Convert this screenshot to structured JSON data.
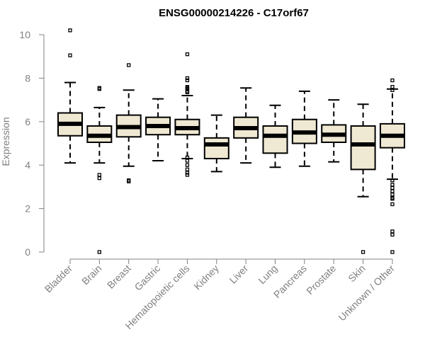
{
  "chart_data": {
    "type": "boxplot",
    "title": "ENSG00000214226 - C17orf67",
    "xlabel": "",
    "ylabel": "Expression",
    "ylim": [
      0,
      10
    ],
    "yticks": [
      0,
      2,
      4,
      6,
      8,
      10
    ],
    "grid": false,
    "legend": "none",
    "box_fill": "#efe8d2",
    "line_color": "#000000",
    "axis_color": "#808080",
    "categories": [
      "Bladder",
      "Brain",
      "Breast",
      "Gastric",
      "Hematopoietic cells",
      "Kidney",
      "Liver",
      "Lung",
      "Pancreas",
      "Prostate",
      "Skin",
      "Unknown / Other"
    ],
    "series": [
      {
        "category": "Bladder",
        "whisker_low": 4.1,
        "q1": 5.35,
        "median": 5.9,
        "q3": 6.4,
        "whisker_high": 7.8,
        "outliers": [
          9.05,
          10.2
        ]
      },
      {
        "category": "Brain",
        "whisker_low": 4.1,
        "q1": 5.05,
        "median": 5.35,
        "q3": 5.8,
        "whisker_high": 6.65,
        "outliers": [
          7.5,
          7.55,
          3.55,
          3.4,
          0.0
        ]
      },
      {
        "category": "Breast",
        "whisker_low": 3.95,
        "q1": 5.3,
        "median": 5.75,
        "q3": 6.3,
        "whisker_high": 7.45,
        "outliers": [
          8.6,
          3.3,
          3.25
        ]
      },
      {
        "category": "Gastric",
        "whisker_low": 4.2,
        "q1": 5.4,
        "median": 5.8,
        "q3": 6.2,
        "whisker_high": 7.05,
        "outliers": []
      },
      {
        "category": "Hematopoietic cells",
        "whisker_low": 4.3,
        "q1": 5.4,
        "median": 5.7,
        "q3": 6.1,
        "whisker_high": 7.2,
        "outliers": [
          9.1,
          8.0,
          7.9,
          7.6,
          7.55,
          7.5,
          7.4,
          7.35,
          4.35,
          4.2,
          4.0,
          3.8,
          3.65,
          3.55
        ]
      },
      {
        "category": "Kidney",
        "whisker_low": 3.7,
        "q1": 4.3,
        "median": 4.95,
        "q3": 5.25,
        "whisker_high": 6.3,
        "outliers": []
      },
      {
        "category": "Liver",
        "whisker_low": 4.1,
        "q1": 5.25,
        "median": 5.7,
        "q3": 6.2,
        "whisker_high": 7.55,
        "outliers": []
      },
      {
        "category": "Lung",
        "whisker_low": 3.9,
        "q1": 4.55,
        "median": 5.35,
        "q3": 5.8,
        "whisker_high": 6.75,
        "outliers": []
      },
      {
        "category": "Pancreas",
        "whisker_low": 3.95,
        "q1": 5.0,
        "median": 5.5,
        "q3": 6.1,
        "whisker_high": 7.4,
        "outliers": []
      },
      {
        "category": "Prostate",
        "whisker_low": 4.15,
        "q1": 5.05,
        "median": 5.4,
        "q3": 5.85,
        "whisker_high": 7.0,
        "outliers": []
      },
      {
        "category": "Skin",
        "whisker_low": 2.55,
        "q1": 3.8,
        "median": 4.95,
        "q3": 5.8,
        "whisker_high": 6.8,
        "outliers": [
          0.0
        ]
      },
      {
        "category": "Unknown / Other",
        "whisker_low": 3.35,
        "q1": 4.8,
        "median": 5.35,
        "q3": 5.9,
        "whisker_high": 7.5,
        "outliers": [
          7.9,
          7.6,
          7.45,
          3.3,
          3.1,
          2.95,
          2.8,
          2.65,
          2.5,
          2.45,
          2.2,
          0.95,
          0.8,
          0.0
        ]
      }
    ]
  }
}
